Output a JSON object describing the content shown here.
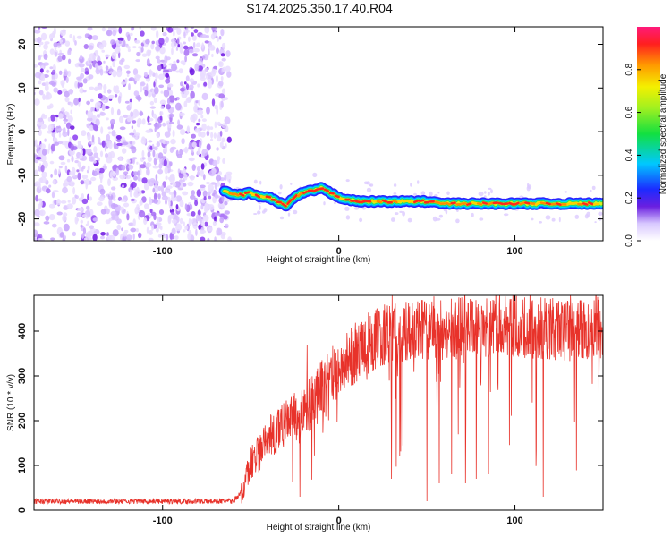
{
  "title": "S174.2025.350.17.40.R04",
  "colors": {
    "snr_line": "#e8322a",
    "frame": "#000000",
    "scatter": "#8a3cf0",
    "track_core": "#ff2a1a"
  },
  "chart_data": [
    {
      "type": "heatmap",
      "name": "spectrogram",
      "xlabel": "Height of straight line (km)",
      "ylabel": "Frequency (Hz)",
      "xlim": [
        -173,
        150
      ],
      "ylim": [
        -25,
        24
      ],
      "xticks": [
        -100,
        0,
        100
      ],
      "yticks": [
        -20,
        -10,
        0,
        10,
        20
      ],
      "noise_region": {
        "x": [
          -173,
          -62
        ],
        "y": [
          -25,
          24
        ]
      },
      "track": {
        "x": [
          -65,
          -60,
          -55,
          -50,
          -45,
          -40,
          -35,
          -30,
          -25,
          -20,
          -15,
          -10,
          -5,
          0,
          5,
          10,
          20,
          30,
          40,
          50,
          60,
          70,
          80,
          90,
          100,
          110,
          120,
          130,
          140,
          150
        ],
        "freq": [
          -13.5,
          -14.5,
          -14.5,
          -14,
          -15,
          -15,
          -16,
          -17,
          -15,
          -14,
          -13.5,
          -13,
          -14,
          -15,
          -15.5,
          -16,
          -16,
          -16,
          -16,
          -16,
          -16.5,
          -16.5,
          -16.5,
          -16.5,
          -16.5,
          -16.5,
          -16.5,
          -16.5,
          -16.5,
          -16.5
        ]
      },
      "colorbar": {
        "label": "Normalized spectral amplitude",
        "range": [
          0,
          1
        ],
        "ticks": [
          "0.0",
          "0.2",
          "0.4",
          "0.6",
          "0.8"
        ]
      }
    },
    {
      "type": "line",
      "name": "snr",
      "xlabel": "Height of straight line (km)",
      "ylabel": "SNR (10 * v/v)",
      "xlim": [
        -173,
        150
      ],
      "ylim": [
        0,
        480
      ],
      "xticks": [
        -100,
        0,
        100
      ],
      "yticks": [
        0,
        100,
        200,
        300,
        400
      ],
      "trend": {
        "x": [
          -173,
          -60,
          -54,
          -50,
          -45,
          -40,
          -30,
          -20,
          -10,
          0,
          10,
          20,
          30,
          40,
          50,
          60,
          80,
          100,
          120,
          135,
          150
        ],
        "y": [
          20,
          20,
          45,
          105,
          130,
          160,
          195,
          225,
          265,
          315,
          355,
          380,
          400,
          400,
          405,
          405,
          410,
          410,
          405,
          400,
          410
        ]
      },
      "spike_drops": [
        {
          "x": -22,
          "y": 30
        },
        {
          "x": 30,
          "y": 70
        },
        {
          "x": 50,
          "y": 20
        },
        {
          "x": 57,
          "y": 60
        },
        {
          "x": 64,
          "y": 80
        },
        {
          "x": 72,
          "y": 60
        },
        {
          "x": 78,
          "y": 70
        },
        {
          "x": 85,
          "y": 80
        },
        {
          "x": 116,
          "y": 30
        }
      ],
      "spike_peaks": [
        {
          "x": -18,
          "y": 370
        }
      ]
    }
  ]
}
